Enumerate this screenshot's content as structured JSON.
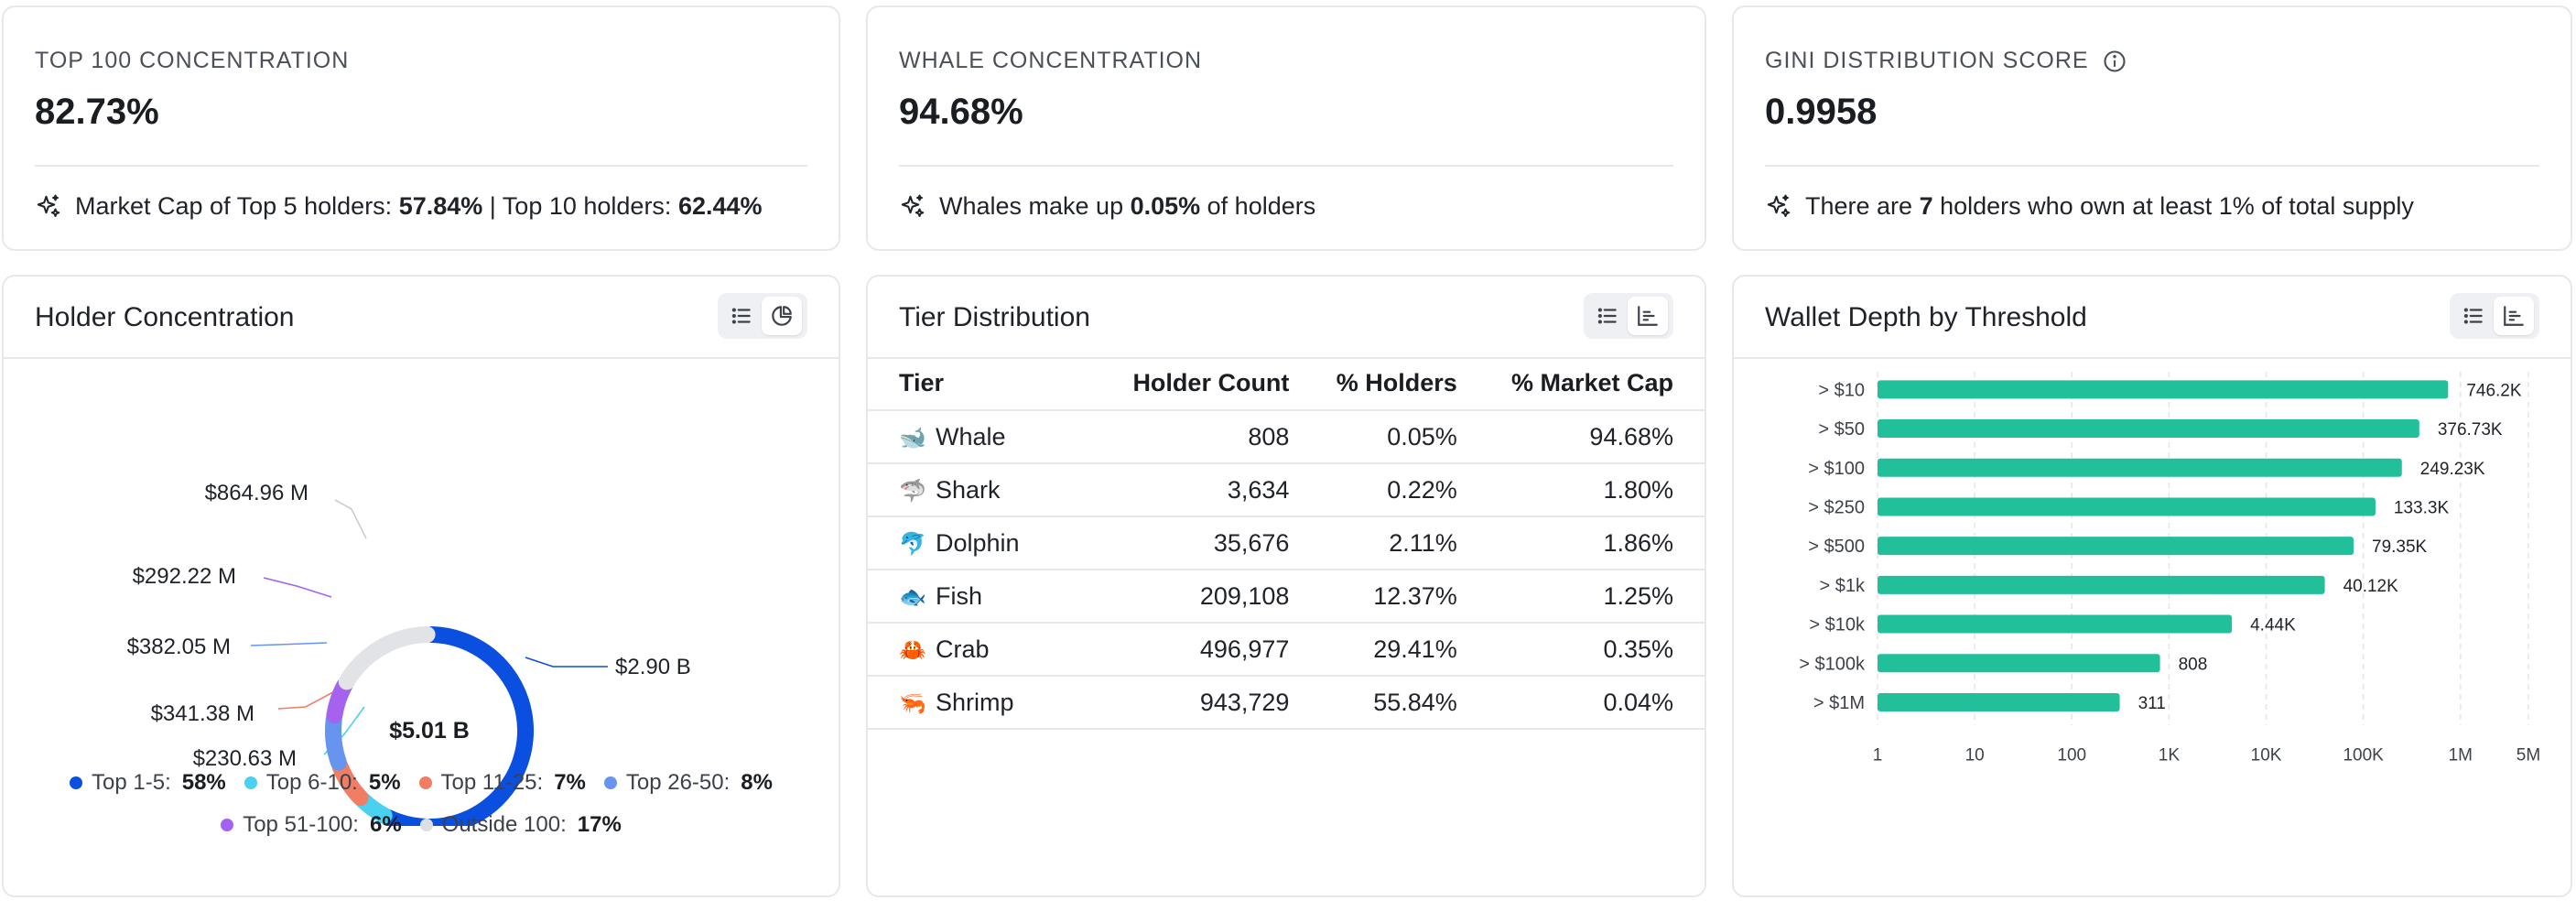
{
  "stats": [
    {
      "label": "TOP 100 CONCENTRATION",
      "value": "82.73%",
      "foot": [
        {
          "t": "Market Cap of Top 5 holders: ",
          "b": false
        },
        {
          "t": "57.84%",
          "b": true
        },
        {
          "t": " | Top 10 holders: ",
          "b": false
        },
        {
          "t": "62.44%",
          "b": true
        }
      ]
    },
    {
      "label": "WHALE CONCENTRATION",
      "value": "94.68%",
      "foot": [
        {
          "t": "Whales make up ",
          "b": false
        },
        {
          "t": "0.05%",
          "b": true
        },
        {
          "t": " of holders",
          "b": false
        }
      ]
    },
    {
      "label": "GINI DISTRIBUTION SCORE",
      "value": "0.9958",
      "foot": [
        {
          "t": "There are ",
          "b": false
        },
        {
          "t": "7",
          "b": true
        },
        {
          "t": " holders who own at least 1% of total supply",
          "b": false
        }
      ]
    }
  ],
  "holder_concentration": {
    "title": "Holder Concentration",
    "center_label": "$5.01 B",
    "segments": [
      {
        "name": "Top 1-5",
        "percent": 58,
        "percent_label": "58%",
        "value_label": "$2.90 B",
        "color": "#0a4fe0"
      },
      {
        "name": "Top 6-10",
        "percent": 5,
        "percent_label": "5%",
        "value_label": "$230.63 M",
        "color": "#4ad0f0"
      },
      {
        "name": "Top 11-25",
        "percent": 7,
        "percent_label": "7%",
        "value_label": "$341.38 M",
        "color": "#f07d64"
      },
      {
        "name": "Top 26-50",
        "percent": 8,
        "percent_label": "8%",
        "value_label": "$382.05 M",
        "color": "#6694ee"
      },
      {
        "name": "Top 51-100",
        "percent": 6,
        "percent_label": "6%",
        "value_label": "$292.22 M",
        "color": "#a562ef"
      },
      {
        "name": "Outside 100",
        "percent": 17,
        "percent_label": "17%",
        "value_label": "$864.96 M",
        "color": "#e1e3e7"
      }
    ]
  },
  "tier_distribution": {
    "title": "Tier Distribution",
    "columns": [
      "Tier",
      "Holder Count",
      "% Holders",
      "% Market Cap"
    ],
    "rows": [
      {
        "emoji": "🐋",
        "tier": "Whale",
        "count": "808",
        "holders": "0.05%",
        "mcap": "94.68%"
      },
      {
        "emoji": "🦈",
        "tier": "Shark",
        "count": "3,634",
        "holders": "0.22%",
        "mcap": "1.80%"
      },
      {
        "emoji": "🐬",
        "tier": "Dolphin",
        "count": "35,676",
        "holders": "2.11%",
        "mcap": "1.86%"
      },
      {
        "emoji": "🐟",
        "tier": "Fish",
        "count": "209,108",
        "holders": "12.37%",
        "mcap": "1.25%"
      },
      {
        "emoji": "🦀",
        "tier": "Crab",
        "count": "496,977",
        "holders": "29.41%",
        "mcap": "0.35%"
      },
      {
        "emoji": "🦐",
        "tier": "Shrimp",
        "count": "943,729",
        "holders": "55.84%",
        "mcap": "0.04%"
      }
    ]
  },
  "wallet_depth": {
    "title": "Wallet Depth by Threshold"
  },
  "chart_data": {
    "type": "bar",
    "orientation": "horizontal",
    "x_scale": "log",
    "xlim": [
      1,
      5000000
    ],
    "grid": true,
    "categories": [
      "> $10",
      "> $50",
      "> $100",
      "> $250",
      "> $500",
      "> $1k",
      "> $10k",
      "> $100k",
      "> $1M"
    ],
    "values": [
      746200,
      376730,
      249230,
      133300,
      79350,
      40120,
      4440,
      808,
      311
    ],
    "value_labels": [
      "746.2K",
      "376.73K",
      "249.23K",
      "133.3K",
      "79.35K",
      "40.12K",
      "4.44K",
      "808",
      "311"
    ],
    "ticks": [
      1,
      10,
      100,
      1000,
      10000,
      100000,
      1000000,
      5000000
    ],
    "tick_labels": [
      "1",
      "10",
      "100",
      "1K",
      "10K",
      "100K",
      "1M",
      "5M"
    ],
    "bar_color": "#21bf9a"
  }
}
